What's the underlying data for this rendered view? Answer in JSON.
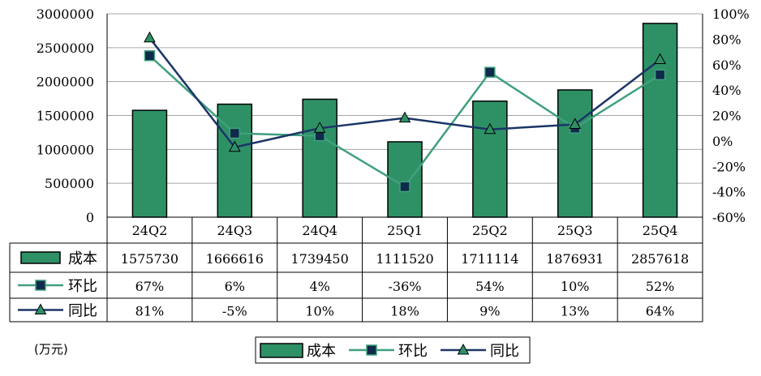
{
  "unit_label": "(万元)",
  "colors": {
    "bar_fill": "#2e9166",
    "huanbi_line": "#3fa07c",
    "huanbi_marker": "#0f2a4a",
    "tongbi_line": "#1b3566",
    "tongbi_marker": "#2e9166"
  },
  "chart_data": {
    "type": "bar",
    "title": "",
    "categories": [
      "24Q2",
      "24Q3",
      "24Q4",
      "25Q1",
      "25Q2",
      "25Q3",
      "25Q4"
    ],
    "left_axis": {
      "range": [
        0,
        3000000
      ],
      "ticks": [
        "3000000",
        "2500000",
        "2000000",
        "1500000",
        "1000000",
        "500000",
        "0"
      ]
    },
    "right_axis": {
      "range": [
        -60,
        100
      ],
      "ticks": [
        "100%",
        "80%",
        "60%",
        "40%",
        "20%",
        "0%",
        "-20%",
        "-40%",
        "-60%"
      ]
    },
    "series": [
      {
        "name": "成本",
        "kind": "bar",
        "axis": "left",
        "values": [
          1575730,
          1666616,
          1739450,
          1111520,
          1711114,
          1876931,
          2857618
        ],
        "labels": [
          "1575730",
          "1666616",
          "1739450",
          "1111520",
          "1711114",
          "1876931",
          "2857618"
        ]
      },
      {
        "name": "环比",
        "kind": "line",
        "axis": "right",
        "marker": "square",
        "values": [
          67,
          6,
          4,
          -36,
          54,
          10,
          52
        ],
        "labels": [
          "67%",
          "6%",
          "4%",
          "-36%",
          "54%",
          "10%",
          "52%"
        ]
      },
      {
        "name": "同比",
        "kind": "line",
        "axis": "right",
        "marker": "triangle",
        "values": [
          81,
          -5,
          10,
          18,
          9,
          13,
          64
        ],
        "labels": [
          "81%",
          "-5%",
          "10%",
          "18%",
          "9%",
          "13%",
          "64%"
        ]
      }
    ],
    "legend": [
      "成本",
      "环比",
      "同比"
    ],
    "legend_position": "bottom",
    "grid": true
  }
}
